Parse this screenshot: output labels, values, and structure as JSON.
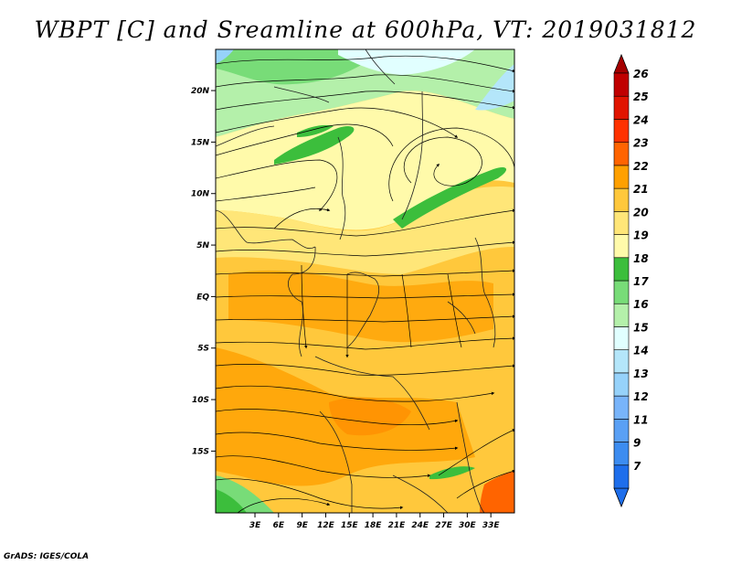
{
  "title": "WBPT [C] and Sreamline at 600hPa, VT: 2019031812",
  "credit": "GrADS: IGES/COLA",
  "map": {
    "lon_range": [
      -2,
      36
    ],
    "lat_range": [
      -21,
      24
    ],
    "lat_ticks": [
      {
        "value": 20,
        "label": "20N"
      },
      {
        "value": 15,
        "label": "15N"
      },
      {
        "value": 10,
        "label": "10N"
      },
      {
        "value": 5,
        "label": "5N"
      },
      {
        "value": 0,
        "label": "EQ"
      },
      {
        "value": -5,
        "label": "5S"
      },
      {
        "value": -10,
        "label": "10S"
      },
      {
        "value": -15,
        "label": "15S"
      }
    ],
    "lon_ticks": [
      {
        "value": 3,
        "label": "3E"
      },
      {
        "value": 6,
        "label": "6E"
      },
      {
        "value": 9,
        "label": "9E"
      },
      {
        "value": 12,
        "label": "12E"
      },
      {
        "value": 15,
        "label": "15E"
      },
      {
        "value": 18,
        "label": "18E"
      },
      {
        "value": 21,
        "label": "21E"
      },
      {
        "value": 24,
        "label": "24E"
      },
      {
        "value": 27,
        "label": "27E"
      },
      {
        "value": 30,
        "label": "30E"
      },
      {
        "value": 33,
        "label": "33E"
      }
    ]
  },
  "colorbar": {
    "levels": [
      {
        "label": "7",
        "color": "#1e6eeb"
      },
      {
        "label": "9",
        "color": "#3c8cf0"
      },
      {
        "label": "11",
        "color": "#5aa0f5"
      },
      {
        "label": "12",
        "color": "#78b4fa"
      },
      {
        "label": "13",
        "color": "#96d2fa"
      },
      {
        "label": "14",
        "color": "#b4e6fa"
      },
      {
        "label": "15",
        "color": "#e1ffff"
      },
      {
        "label": "16",
        "color": "#b4f0aa"
      },
      {
        "label": "17",
        "color": "#78dc78"
      },
      {
        "label": "18",
        "color": "#3cbe3c"
      },
      {
        "label": "19",
        "color": "#fffaaa"
      },
      {
        "label": "20",
        "color": "#ffe678"
      },
      {
        "label": "21",
        "color": "#ffc83c"
      },
      {
        "label": "22",
        "color": "#ffa000"
      },
      {
        "label": "23",
        "color": "#ff6400"
      },
      {
        "label": "24",
        "color": "#ff3200"
      },
      {
        "label": "25",
        "color": "#e11400"
      },
      {
        "label": "26",
        "color": "#c00000"
      }
    ],
    "top_color": "#a50000",
    "bottom_color": "#1e6eeb"
  }
}
